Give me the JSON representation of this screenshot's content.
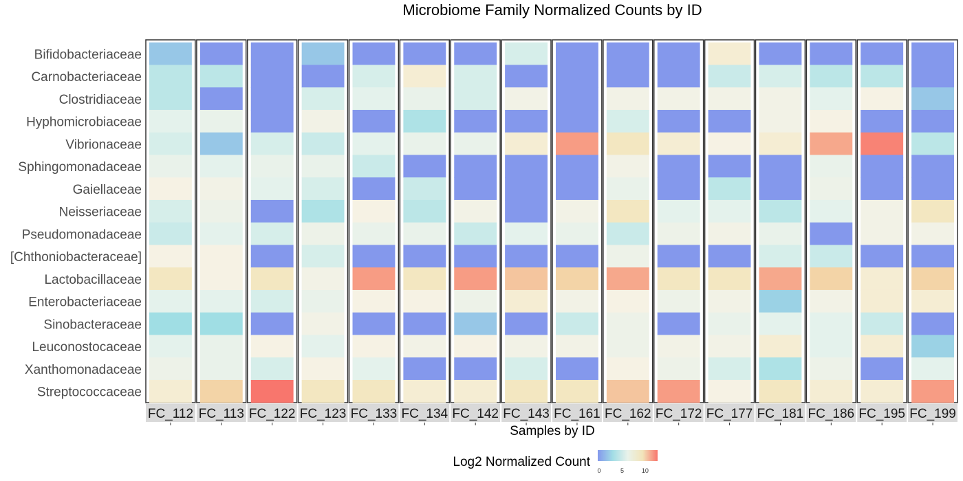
{
  "chart_data": {
    "type": "heatmap",
    "title": "Microbiome Family Normalized Counts by ID",
    "xlabel": "Samples by ID",
    "ylabel": "",
    "samples": [
      "FC_112",
      "FC_113",
      "FC_122",
      "FC_123",
      "FC_133",
      "FC_134",
      "FC_142",
      "FC_143",
      "FC_161",
      "FC_162",
      "FC_172",
      "FC_177",
      "FC_181",
      "FC_186",
      "FC_195",
      "FC_199"
    ],
    "families": [
      "Bifidobacteriaceae",
      "Carnobacteriaceae",
      "Clostridiaceae",
      "Hyphomicrobiaceae",
      "Vibrionaceae",
      "Sphingomonadaceae",
      "Gaiellaceae",
      "Neisseriaceae",
      "Pseudomonadaceae",
      "[Chthoniobacteraceae]",
      "Lactobacillaceae",
      "Enterobacteriaceae",
      "Sinobacteraceae",
      "Leuconostocaceae",
      "Xanthomonadaceae",
      "Streptococcaceae"
    ],
    "values": [
      [
        2.0,
        3.0,
        3.0,
        4.5,
        5.0,
        5.8,
        5.5,
        4.0,
        4.5,
        3.5,
        4.0,
        3.5,
        3.0,
        4.0,
        5.0,
        3.0
      ],
      [
        0,
        3.5,
        1.0,
        6.0,
        5.0,
        5.5,
        5.5,
        5.5,
        4.5,
        5.5,
        4.5,
        7.5,
        6.0,
        5.5,
        6.0,
        8.5
      ],
      [
        0,
        0,
        0,
        0,
        0,
        0,
        0,
        0,
        0,
        0,
        0,
        0,
        0,
        0,
        0,
        0
      ],
      [
        1.5,
        0,
        4.5,
        7.0,
        5.0,
        4.5,
        5.0,
        0,
        6.5,
        7.0,
        6.5,
        8.0,
        4.5,
        8.0,
        4.5,
        0
      ],
      [
        0,
        4.5,
        5.5,
        4.5,
        0,
        7.5,
        4.0,
        5.0,
        0,
        0,
        0,
        0,
        0,
        0,
        6.5,
        0
      ],
      [
        0,
        0,
        6.5,
        7.0,
        4.5,
        0,
        5.5,
        7.0,
        6.0,
        7.0,
        6.5,
        8.5,
        4.5,
        8.5,
        8.0,
        8.0
      ],
      [
        0,
        4.0,
        0,
        0,
        0,
        4.5,
        0,
        0,
        0,
        0,
        0,
        5.0,
        0,
        5.5,
        0,
        6.0
      ],
      [
        0,
        0,
        0,
        0,
        0,
        0,
        0,
        0,
        0,
        0,
        0,
        0,
        0,
        0,
        0,
        0
      ],
      [
        0,
        5.0,
        6.0,
        6.0,
        0,
        0,
        0,
        0,
        0,
        0,
        0,
        0,
        0,
        6.0,
        0,
        0
      ],
      [
        0,
        0,
        0,
        0,
        0,
        0,
        0,
        0,
        0,
        0,
        0,
        0,
        0,
        6.5,
        0,
        0
      ],
      [
        0,
        0,
        0,
        0,
        0,
        0,
        0,
        0,
        0,
        0,
        0,
        0,
        0,
        0,
        0,
        0
      ],
      [
        0,
        0,
        0,
        0,
        0,
        0,
        0,
        0,
        0,
        0,
        0,
        0,
        0,
        0,
        0,
        0
      ],
      [
        0,
        0,
        0,
        0,
        0,
        0,
        0,
        0,
        0,
        0,
        0,
        0,
        0,
        0,
        0,
        0
      ],
      [
        0,
        0,
        0,
        0,
        0,
        0,
        0,
        0,
        0,
        0,
        0,
        0,
        0,
        0,
        0,
        0
      ],
      [
        0,
        0,
        0,
        0,
        0,
        0,
        0,
        0,
        0,
        0,
        0,
        0,
        0,
        0,
        0,
        0
      ],
      [
        0,
        0,
        0,
        0,
        0,
        0,
        0,
        0,
        0,
        0,
        0,
        0,
        0,
        0,
        0,
        0
      ]
    ],
    "values_by_sample": [
      [
        2.5,
        4.0,
        4.0,
        5.5,
        5.0,
        5.5,
        7.5,
        5.0,
        4.5,
        8.0,
        5.0,
        3.5,
        5.0,
        6.5,
        7.5,
        8.5
      ],
      [
        0,
        3.5,
        0,
        5.5,
        4.5,
        6.0,
        7.0,
        7.0,
        8.5,
        8.0,
        8.0,
        6.0,
        5.0,
        4.0,
        3.5,
        9.5
      ],
      [
        0,
        0,
        0,
        6.0,
        7.0,
        6.5,
        5.5,
        7.0,
        8.0,
        6.0,
        0,
        5.5,
        7.5,
        6.5,
        8.5,
        13.0
      ],
      [
        1.5,
        0,
        6.5,
        7.0,
        6.5,
        4.5,
        7.0,
        4.5,
        5.0,
        6.5,
        6.5,
        6.0,
        6.5,
        6.0,
        5.5,
        8.5
      ],
      [
        0,
        6.5,
        0,
        5.5,
        5.0,
        7.0,
        5.0,
        7.5,
        12.0,
        0,
        0,
        0,
        10.0,
        8.0,
        0,
        7.0
      ],
      [
        0,
        8.0,
        7.5,
        7.0,
        4.0,
        4.5,
        6.0,
        7.0,
        7.5,
        7.5,
        7.0,
        8.5,
        4.5,
        8.5,
        8.0,
        8.5
      ],
      [
        0,
        5.0,
        0,
        6.0,
        4.5,
        4.5,
        0,
        0,
        0,
        6.0,
        0,
        6.5,
        0,
        6.0,
        6.5,
        6.0
      ],
      [
        0,
        0,
        0,
        0,
        0,
        0,
        0,
        0,
        0,
        7.5,
        0,
        0,
        0,
        0,
        0,
        0
      ],
      [
        0,
        7.5,
        0,
        0,
        0,
        0,
        0,
        0,
        0,
        0,
        0,
        0,
        0,
        0,
        0,
        0
      ],
      [
        0,
        6.5,
        0,
        0,
        0,
        0,
        0,
        0,
        0,
        0,
        0,
        0,
        0,
        0,
        0,
        0
      ],
      [
        0,
        0,
        0,
        0,
        0,
        0,
        0,
        0,
        0,
        0,
        0,
        0,
        0,
        0,
        0,
        0
      ],
      [
        0,
        0,
        0,
        0,
        0,
        0,
        0,
        0,
        0,
        0,
        0,
        0,
        0,
        0,
        0,
        0
      ],
      [
        0,
        0,
        0,
        0,
        0,
        0,
        0,
        0,
        0,
        0,
        0,
        0,
        0,
        0,
        0,
        0
      ],
      [
        0,
        0,
        0,
        0,
        0,
        0,
        0,
        0,
        0,
        0,
        0,
        0,
        0,
        0,
        0,
        0
      ],
      [
        0,
        0,
        0,
        0,
        0,
        0,
        0,
        0,
        0,
        0,
        0,
        0,
        0,
        0,
        0,
        0
      ],
      [
        0,
        0,
        0,
        0,
        0,
        0,
        0,
        0,
        0,
        0,
        0,
        0,
        0,
        0,
        0,
        0
      ]
    ],
    "legend": {
      "title": "Log2 Normalized Count",
      "ticks": [
        0,
        5,
        10
      ],
      "range": [
        0,
        13
      ],
      "colors": [
        "#8498ec",
        "#a2dde6",
        "#e9f2ea",
        "#f2e4ba",
        "#f8766d"
      ]
    }
  }
}
